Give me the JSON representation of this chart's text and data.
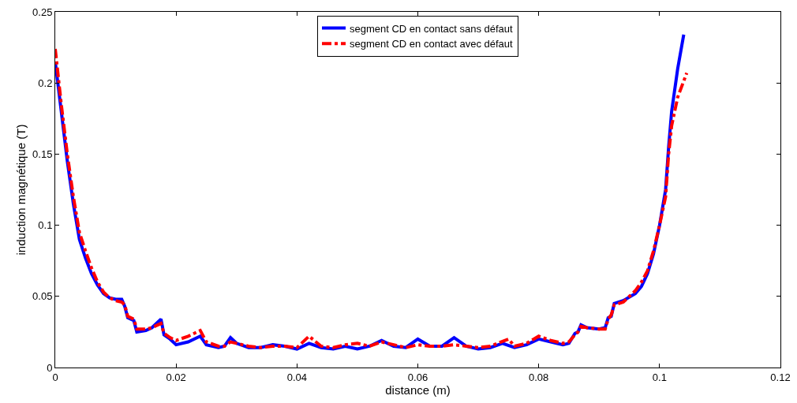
{
  "chart_data": {
    "type": "line",
    "xlabel": "distance (m)",
    "ylabel": "induction magnétique (T)",
    "xlim": [
      0,
      0.12
    ],
    "xticks": [
      0,
      0.02,
      0.04,
      0.06,
      0.08,
      0.1,
      0.12
    ],
    "ylim": [
      0,
      0.25
    ],
    "yticks": [
      0,
      0.05,
      0.1,
      0.15,
      0.2,
      0.25
    ],
    "legend": "top",
    "marker": "none",
    "series": [
      {
        "name": "segment CD en contact sans défaut",
        "color": "#0000ff",
        "line_style": "solid",
        "x": [
          0,
          0.001,
          0.002,
          0.003,
          0.004,
          0.005,
          0.006,
          0.007,
          0.008,
          0.009,
          0.01,
          0.011,
          0.0115,
          0.012,
          0.013,
          0.0135,
          0.015,
          0.016,
          0.017,
          0.0175,
          0.018,
          0.019,
          0.02,
          0.022,
          0.024,
          0.025,
          0.027,
          0.028,
          0.029,
          0.03,
          0.032,
          0.034,
          0.036,
          0.038,
          0.04,
          0.042,
          0.044,
          0.046,
          0.048,
          0.05,
          0.052,
          0.054,
          0.056,
          0.058,
          0.06,
          0.062,
          0.064,
          0.066,
          0.068,
          0.07,
          0.072,
          0.074,
          0.076,
          0.078,
          0.08,
          0.082,
          0.084,
          0.085,
          0.086,
          0.0865,
          0.087,
          0.088,
          0.09,
          0.091,
          0.0915,
          0.092,
          0.0925,
          0.094,
          0.096,
          0.097,
          0.098,
          0.099,
          0.1,
          0.101,
          0.1015,
          0.102,
          0.103,
          0.104
        ],
        "values": [
          0.215,
          0.18,
          0.145,
          0.115,
          0.09,
          0.077,
          0.066,
          0.058,
          0.052,
          0.049,
          0.048,
          0.048,
          0.043,
          0.035,
          0.033,
          0.025,
          0.026,
          0.028,
          0.032,
          0.034,
          0.023,
          0.02,
          0.016,
          0.018,
          0.022,
          0.016,
          0.014,
          0.015,
          0.021,
          0.017,
          0.014,
          0.014,
          0.016,
          0.015,
          0.013,
          0.017,
          0.014,
          0.013,
          0.015,
          0.013,
          0.015,
          0.019,
          0.015,
          0.014,
          0.02,
          0.015,
          0.015,
          0.021,
          0.015,
          0.013,
          0.014,
          0.017,
          0.014,
          0.016,
          0.02,
          0.018,
          0.016,
          0.017,
          0.024,
          0.025,
          0.03,
          0.028,
          0.027,
          0.028,
          0.035,
          0.036,
          0.045,
          0.047,
          0.052,
          0.057,
          0.066,
          0.08,
          0.1,
          0.125,
          0.155,
          0.18,
          0.21,
          0.234
        ]
      },
      {
        "name": "segment CD en contact avec défaut",
        "color": "#ff0000",
        "line_style": "dashdot",
        "x": [
          0,
          0.001,
          0.002,
          0.003,
          0.004,
          0.005,
          0.006,
          0.007,
          0.008,
          0.009,
          0.01,
          0.011,
          0.0115,
          0.012,
          0.013,
          0.0135,
          0.015,
          0.016,
          0.017,
          0.0175,
          0.018,
          0.019,
          0.02,
          0.022,
          0.024,
          0.025,
          0.027,
          0.028,
          0.029,
          0.03,
          0.032,
          0.034,
          0.036,
          0.038,
          0.04,
          0.042,
          0.044,
          0.046,
          0.048,
          0.05,
          0.052,
          0.054,
          0.056,
          0.058,
          0.06,
          0.062,
          0.064,
          0.066,
          0.068,
          0.07,
          0.072,
          0.075,
          0.076,
          0.078,
          0.08,
          0.082,
          0.084,
          0.085,
          0.086,
          0.0865,
          0.087,
          0.088,
          0.09,
          0.091,
          0.0915,
          0.092,
          0.0925,
          0.094,
          0.096,
          0.097,
          0.098,
          0.099,
          0.1,
          0.101,
          0.1015,
          0.102,
          0.103,
          0.1045
        ],
        "values": [
          0.224,
          0.185,
          0.15,
          0.12,
          0.095,
          0.082,
          0.07,
          0.06,
          0.053,
          0.049,
          0.047,
          0.046,
          0.044,
          0.036,
          0.034,
          0.027,
          0.027,
          0.028,
          0.03,
          0.031,
          0.024,
          0.021,
          0.019,
          0.022,
          0.026,
          0.018,
          0.015,
          0.015,
          0.018,
          0.017,
          0.015,
          0.014,
          0.015,
          0.015,
          0.014,
          0.022,
          0.015,
          0.014,
          0.016,
          0.017,
          0.015,
          0.018,
          0.016,
          0.014,
          0.016,
          0.015,
          0.015,
          0.016,
          0.015,
          0.014,
          0.015,
          0.02,
          0.015,
          0.017,
          0.022,
          0.019,
          0.017,
          0.018,
          0.023,
          0.025,
          0.029,
          0.028,
          0.027,
          0.027,
          0.034,
          0.037,
          0.044,
          0.046,
          0.054,
          0.06,
          0.068,
          0.082,
          0.1,
          0.12,
          0.15,
          0.17,
          0.19,
          0.207
        ]
      }
    ]
  }
}
